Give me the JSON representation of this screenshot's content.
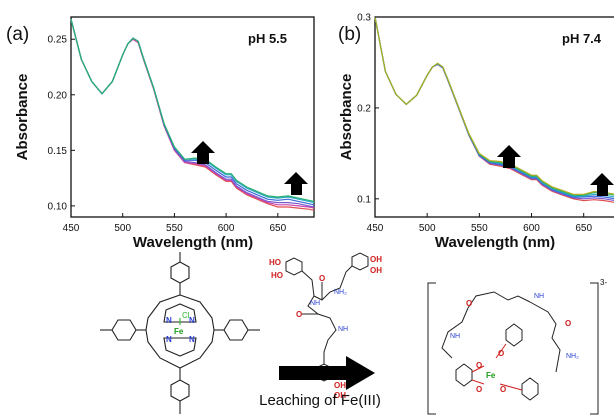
{
  "chart_data": [
    {
      "type": "line",
      "panel_label": "(a)",
      "annotation": "pH 5.5",
      "xlabel": "Wavelength (nm)",
      "ylabel": "Absorbance",
      "xlim": [
        450,
        685
      ],
      "ylim": [
        0.09,
        0.27
      ],
      "x_ticks": [
        450,
        500,
        550,
        600,
        650
      ],
      "y_ticks": [
        0.1,
        0.15,
        0.2,
        0.25
      ],
      "y_tick_labels": [
        "0.10",
        "0.15",
        "0.20",
        "0.25"
      ],
      "x": [
        450,
        460,
        470,
        480,
        490,
        500,
        505,
        510,
        515,
        520,
        530,
        540,
        550,
        560,
        570,
        580,
        590,
        600,
        605,
        610,
        620,
        630,
        640,
        650,
        660,
        670,
        680,
        685
      ],
      "series": [
        {
          "values": [
            0.268,
            0.232,
            0.212,
            0.201,
            0.212,
            0.236,
            0.246,
            0.25,
            0.247,
            0.232,
            0.205,
            0.172,
            0.15,
            0.139,
            0.137,
            0.135,
            0.128,
            0.122,
            0.122,
            0.116,
            0.11,
            0.106,
            0.102,
            0.099,
            0.099,
            0.098,
            0.097,
            0.096
          ],
          "color": "#e05050"
        },
        {
          "values": [
            0.268,
            0.232,
            0.212,
            0.201,
            0.212,
            0.236,
            0.246,
            0.25,
            0.247,
            0.232,
            0.205,
            0.172,
            0.15,
            0.139,
            0.138,
            0.136,
            0.129,
            0.123,
            0.123,
            0.117,
            0.111,
            0.107,
            0.103,
            0.101,
            0.101,
            0.1,
            0.099,
            0.098
          ],
          "color": "#cc44aa"
        },
        {
          "values": [
            0.268,
            0.232,
            0.212,
            0.201,
            0.212,
            0.236,
            0.246,
            0.251,
            0.248,
            0.233,
            0.206,
            0.173,
            0.151,
            0.14,
            0.139,
            0.137,
            0.13,
            0.124,
            0.124,
            0.118,
            0.112,
            0.108,
            0.104,
            0.103,
            0.103,
            0.102,
            0.1,
            0.099
          ],
          "color": "#7a5ad0"
        },
        {
          "values": [
            0.268,
            0.232,
            0.212,
            0.201,
            0.212,
            0.236,
            0.246,
            0.251,
            0.248,
            0.233,
            0.206,
            0.173,
            0.152,
            0.141,
            0.141,
            0.139,
            0.132,
            0.126,
            0.126,
            0.12,
            0.114,
            0.11,
            0.106,
            0.105,
            0.106,
            0.104,
            0.102,
            0.101
          ],
          "color": "#3a6ad8"
        },
        {
          "values": [
            0.268,
            0.232,
            0.212,
            0.201,
            0.212,
            0.236,
            0.246,
            0.251,
            0.248,
            0.233,
            0.206,
            0.174,
            0.153,
            0.142,
            0.142,
            0.141,
            0.134,
            0.128,
            0.128,
            0.122,
            0.116,
            0.112,
            0.108,
            0.107,
            0.108,
            0.106,
            0.104,
            0.103
          ],
          "color": "#2aa7c7"
        },
        {
          "values": [
            0.268,
            0.232,
            0.212,
            0.201,
            0.212,
            0.236,
            0.246,
            0.251,
            0.248,
            0.233,
            0.206,
            0.174,
            0.153,
            0.142,
            0.143,
            0.142,
            0.135,
            0.129,
            0.129,
            0.123,
            0.117,
            0.113,
            0.109,
            0.108,
            0.109,
            0.107,
            0.105,
            0.104
          ],
          "color": "#2ab070"
        }
      ]
    },
    {
      "type": "line",
      "panel_label": "(b)",
      "annotation": "pH 7.4",
      "xlabel": "Wavelength (nm)",
      "ylabel": "Absorbance",
      "xlim": [
        450,
        680
      ],
      "ylim": [
        0.08,
        0.3
      ],
      "x_ticks": [
        450,
        500,
        550,
        600,
        650
      ],
      "y_ticks": [
        0.1,
        0.2,
        0.3
      ],
      "y_tick_labels": [
        "0.1",
        "0.2",
        "0.3"
      ],
      "x": [
        450,
        460,
        470,
        480,
        490,
        500,
        505,
        510,
        515,
        520,
        530,
        540,
        550,
        560,
        570,
        580,
        590,
        600,
        605,
        610,
        620,
        630,
        640,
        650,
        660,
        670,
        680
      ],
      "series": [
        {
          "values": [
            0.3,
            0.24,
            0.215,
            0.204,
            0.214,
            0.236,
            0.245,
            0.248,
            0.244,
            0.23,
            0.2,
            0.17,
            0.147,
            0.138,
            0.136,
            0.133,
            0.127,
            0.121,
            0.121,
            0.115,
            0.108,
            0.104,
            0.1,
            0.098,
            0.099,
            0.098,
            0.096
          ],
          "color": "#e05050"
        },
        {
          "values": [
            0.3,
            0.24,
            0.215,
            0.204,
            0.214,
            0.236,
            0.245,
            0.248,
            0.244,
            0.23,
            0.2,
            0.17,
            0.147,
            0.139,
            0.137,
            0.134,
            0.128,
            0.122,
            0.122,
            0.116,
            0.109,
            0.105,
            0.101,
            0.1,
            0.101,
            0.1,
            0.098
          ],
          "color": "#7a5ad0"
        },
        {
          "values": [
            0.3,
            0.24,
            0.215,
            0.204,
            0.214,
            0.236,
            0.245,
            0.248,
            0.244,
            0.23,
            0.2,
            0.171,
            0.148,
            0.14,
            0.138,
            0.135,
            0.129,
            0.123,
            0.123,
            0.117,
            0.11,
            0.106,
            0.102,
            0.102,
            0.103,
            0.102,
            0.1
          ],
          "color": "#3a6ad8"
        },
        {
          "values": [
            0.3,
            0.24,
            0.215,
            0.204,
            0.214,
            0.236,
            0.245,
            0.249,
            0.245,
            0.231,
            0.201,
            0.171,
            0.149,
            0.141,
            0.139,
            0.136,
            0.13,
            0.124,
            0.124,
            0.118,
            0.111,
            0.107,
            0.103,
            0.103,
            0.105,
            0.104,
            0.102
          ],
          "color": "#2aa7c7"
        },
        {
          "values": [
            0.3,
            0.24,
            0.215,
            0.204,
            0.214,
            0.236,
            0.245,
            0.249,
            0.245,
            0.231,
            0.201,
            0.171,
            0.149,
            0.141,
            0.14,
            0.137,
            0.131,
            0.125,
            0.125,
            0.119,
            0.112,
            0.108,
            0.104,
            0.104,
            0.107,
            0.106,
            0.104
          ],
          "color": "#2ab070"
        },
        {
          "values": [
            0.3,
            0.24,
            0.215,
            0.204,
            0.214,
            0.236,
            0.245,
            0.249,
            0.245,
            0.231,
            0.201,
            0.172,
            0.15,
            0.142,
            0.141,
            0.138,
            0.132,
            0.126,
            0.126,
            0.12,
            0.113,
            0.109,
            0.105,
            0.105,
            0.108,
            0.107,
            0.105
          ],
          "color": "#b0b020"
        }
      ]
    }
  ],
  "scheme": {
    "caption": "Leaching of Fe(III)",
    "porphyrin_atoms": {
      "n": "N",
      "fe": "Fe",
      "cl": "Cl"
    },
    "ligand_atoms": {
      "o": "O",
      "oh": "OH",
      "ho": "HO",
      "nh": "NH",
      "nh2": "NH₂"
    },
    "complex_atoms": {
      "o": "O",
      "nh": "NH",
      "nh2": "NH₂",
      "fe": "Fe"
    },
    "complex_charge": "3-"
  },
  "colors": {
    "axis": "#111111",
    "arrow": "#000000",
    "nitrogen": "#2a3fd0",
    "oxygen": "#d02020",
    "iron": "#1a9a1a"
  }
}
